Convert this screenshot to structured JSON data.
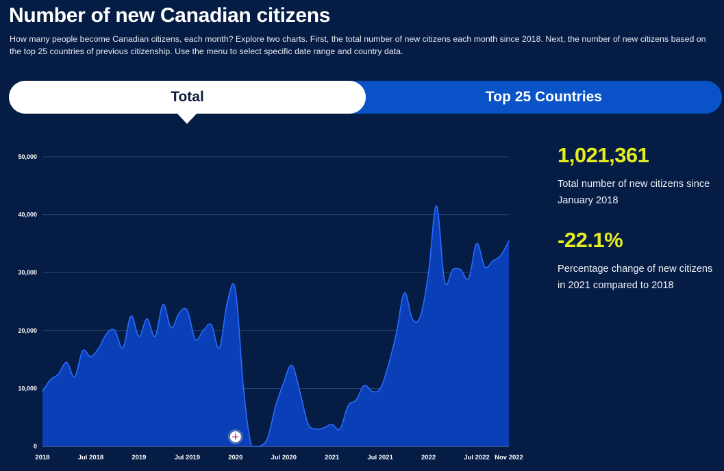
{
  "page": {
    "title": "Number of new Canadian citizens",
    "subtitle": "How many people become Canadian citizens, each month? Explore two charts. First, the total number of new citizens each month since 2018. Next, the number of new citizens based on the top 25 countries of previous citizenship. Use the menu to select specific date range and country data."
  },
  "tabs": [
    {
      "label": "Total",
      "active": true
    },
    {
      "label": "Top 25 Countries",
      "active": false
    }
  ],
  "stats": [
    {
      "value": "1,021,361",
      "label": "Total number of new citizens since January 2018"
    },
    {
      "value": "-22.1%",
      "label": "Percentage change of new citizens in 2021 compared to 2018"
    }
  ],
  "colors": {
    "background": "#051c44",
    "area_fill": "#0a3fb8",
    "line": "#2a6cff",
    "stat_value": "#e6ec1e",
    "tab_active_bg": "#ffffff",
    "tab_inactive_bg": "#0a52c8"
  },
  "chart_data": {
    "type": "area",
    "title": "",
    "xlabel": "",
    "ylabel": "",
    "ylim": [
      0,
      50000
    ],
    "y_ticks": [
      0,
      10000,
      20000,
      30000,
      40000,
      50000
    ],
    "y_tick_labels": [
      "0",
      "10,000",
      "20,000",
      "30,000",
      "40,000",
      "50,000"
    ],
    "x_tick_labels": [
      {
        "label": "2018",
        "index": 0
      },
      {
        "label": "Jul 2018",
        "index": 6
      },
      {
        "label": "2019",
        "index": 12
      },
      {
        "label": "Jul 2019",
        "index": 18
      },
      {
        "label": "2020",
        "index": 24
      },
      {
        "label": "Jul 2020",
        "index": 30
      },
      {
        "label": "2021",
        "index": 36
      },
      {
        "label": "Jul 2021",
        "index": 42
      },
      {
        "label": "2022",
        "index": 48
      },
      {
        "label": "Jul 2022",
        "index": 54
      },
      {
        "label": "Nov 2022",
        "index": 58
      }
    ],
    "grid": true,
    "legend": "none",
    "series": [
      {
        "values": [
          9500,
          11500,
          12500,
          14500,
          12000,
          16500,
          15500,
          17000,
          19500,
          20000,
          17000,
          22500,
          19000,
          22000,
          19000,
          24500,
          20500,
          23000,
          23500,
          18500,
          20000,
          21000,
          17000,
          25000,
          27000,
          10000,
          0,
          0,
          1500,
          7000,
          11000,
          14000,
          9500,
          4000,
          3000,
          3200,
          3800,
          3000,
          7000,
          8000,
          10500,
          9500,
          10000,
          14000,
          19500,
          26500,
          22000,
          22500,
          30000,
          41500,
          28500,
          30500,
          30500,
          29000,
          35000,
          31000,
          32000,
          33000,
          35500
        ]
      }
    ],
    "annotation_marker": {
      "symbol": "+",
      "index": 24
    }
  }
}
